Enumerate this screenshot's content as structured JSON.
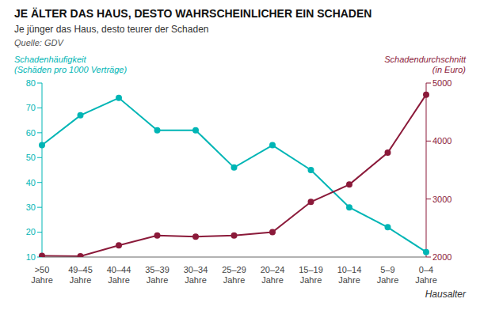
{
  "chart_data": {
    "type": "line",
    "title": "JE ÄLTER DAS HAUS, DESTO WAHRSCHEINLICHER EIN SCHADEN",
    "subtitle": "Je jünger das Haus, desto teurer der Schaden",
    "source": "Quelle: GDV",
    "xlabel": "Hausalter",
    "categories": [
      ">50\nJahre",
      "49–45\nJahre",
      "40–44\nJahre",
      "35–39\nJahre",
      "30–34\nJahre",
      "25–29\nJahre",
      "20–24\nJahre",
      "15–19\nJahre",
      "10–14\nJahre",
      "5–9\nJahre",
      "0–4\nJahre"
    ],
    "series": [
      {
        "name": "Schadenhäufigkeit\n(Schäden pro 1000 Verträge)",
        "color": "#00B5B5",
        "marker": "circle",
        "axis": "y",
        "values": [
          55,
          67,
          74,
          61,
          61,
          46,
          55,
          45,
          30,
          22,
          12
        ]
      },
      {
        "name": "Schadendurchschnitt\n(in Euro)",
        "color": "#8B1A3A",
        "marker": "circle",
        "axis": "y2",
        "values": [
          2020,
          2015,
          2200,
          2370,
          2350,
          2370,
          2430,
          2950,
          3250,
          3800,
          4800
        ]
      }
    ],
    "ylim": [
      10,
      80
    ],
    "yticks": [
      10,
      20,
      30,
      40,
      50,
      60,
      70,
      80
    ],
    "y2lim": [
      2000,
      5000
    ],
    "y2ticks": [
      2000,
      3000,
      4000,
      5000
    ],
    "grid": false
  }
}
